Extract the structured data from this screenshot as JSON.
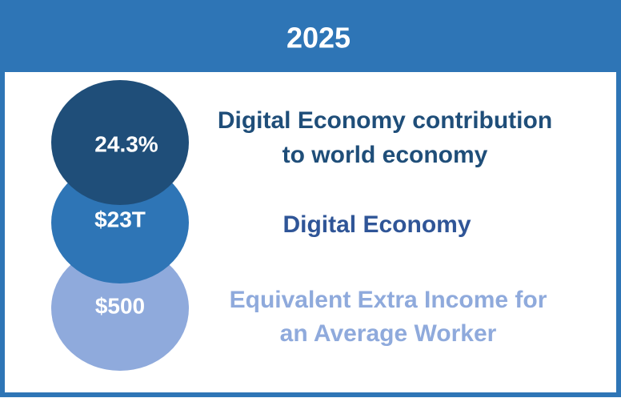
{
  "header": {
    "title": "2025"
  },
  "items": [
    {
      "value": "24.3%",
      "label_lines": [
        "Digital Economy contribution",
        "to world economy"
      ]
    },
    {
      "value": "$23T",
      "label_lines": [
        "Digital Economy"
      ]
    },
    {
      "value": "$500",
      "label_lines": [
        "Equivalent Extra Income for",
        "an Average Worker"
      ]
    }
  ]
}
